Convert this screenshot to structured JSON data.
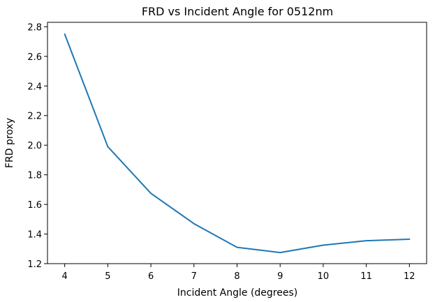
{
  "chart_data": {
    "type": "line",
    "title": "FRD vs Incident Angle for 0512nm",
    "xlabel": "Incident Angle (degrees)",
    "ylabel": "FRD proxy",
    "x": [
      4,
      5,
      6,
      7,
      8,
      9,
      10,
      11,
      12
    ],
    "series": [
      {
        "values": [
          2.75,
          1.99,
          1.675,
          1.47,
          1.31,
          1.275,
          1.325,
          1.355,
          1.365
        ],
        "color": "#1f77b4"
      }
    ],
    "xlim": [
      3.6,
      12.4
    ],
    "ylim": [
      1.2,
      2.83
    ],
    "xticks": [
      "4",
      "5",
      "6",
      "7",
      "8",
      "9",
      "10",
      "11",
      "12"
    ],
    "yticks": [
      "1.2",
      "1.4",
      "1.6",
      "1.8",
      "2.0",
      "2.2",
      "2.4",
      "2.6",
      "2.8"
    ],
    "grid": false,
    "legend": "none"
  }
}
